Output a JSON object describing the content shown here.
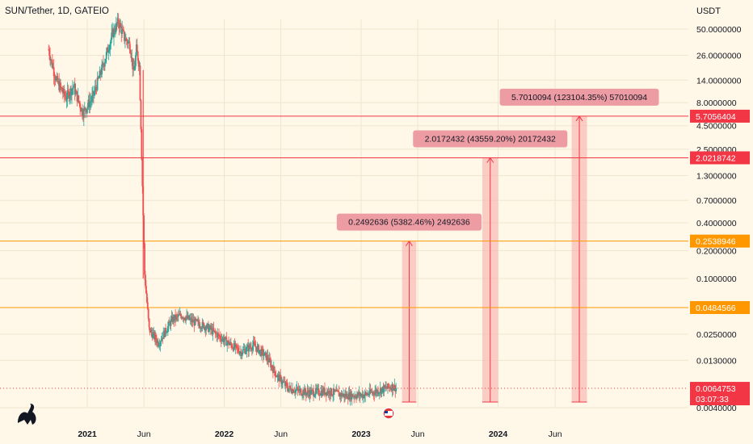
{
  "header": {
    "title": "SUN/Tether, 1D, GATEIO",
    "unit": "USDT"
  },
  "colors": {
    "background": "#fff7e7",
    "up": "#26a69a",
    "down": "#ef5350",
    "red_line": "#f23645",
    "orange_line": "#ff9800",
    "projection_fill": "#f7a9a8",
    "projection_label_bg": "#ee9ca4"
  },
  "chart_data": {
    "type": "candlestick",
    "y_scale": "log",
    "ylim": [
      0.0035,
      70
    ],
    "y_ticks": [
      "50.0000000",
      "26.0000000",
      "14.0000000",
      "8.0000000",
      "4.5000000",
      "2.5000000",
      "1.3000000",
      "0.7000000",
      "0.4000000",
      "0.2000000",
      "0.1000000",
      "0.0250000",
      "0.0130000",
      "0.0040000"
    ],
    "x_ticks": [
      {
        "label": "2021",
        "date": "2021-01-01",
        "bold": true
      },
      {
        "label": "Jun",
        "date": "2021-06-01",
        "bold": false
      },
      {
        "label": "2022",
        "date": "2022-01-01",
        "bold": true
      },
      {
        "label": "Jun",
        "date": "2022-06-01",
        "bold": false
      },
      {
        "label": "2023",
        "date": "2023-01-01",
        "bold": true
      },
      {
        "label": "Jun",
        "date": "2023-06-01",
        "bold": false
      },
      {
        "label": "2024",
        "date": "2024-01-01",
        "bold": true
      },
      {
        "label": "Jun",
        "date": "2024-06-01",
        "bold": false
      }
    ],
    "price_path": [
      [
        "2020-09-20",
        30
      ],
      [
        "2020-10-10",
        14
      ],
      [
        "2020-11-05",
        9
      ],
      [
        "2020-11-25",
        12
      ],
      [
        "2020-12-20",
        6.2
      ],
      [
        "2021-01-15",
        9
      ],
      [
        "2021-02-15",
        22
      ],
      [
        "2021-03-10",
        45
      ],
      [
        "2021-03-25",
        60
      ],
      [
        "2021-04-10",
        40
      ],
      [
        "2021-04-25",
        34
      ],
      [
        "2021-05-05",
        16
      ],
      [
        "2021-05-12",
        30
      ],
      [
        "2021-05-20",
        20
      ],
      [
        "2021-06-03",
        0.11
      ],
      [
        "2021-06-15",
        0.028
      ],
      [
        "2021-07-10",
        0.02
      ],
      [
        "2021-08-15",
        0.036
      ],
      [
        "2021-09-10",
        0.04
      ],
      [
        "2021-10-10",
        0.034
      ],
      [
        "2021-11-15",
        0.03
      ],
      [
        "2022-01-05",
        0.021
      ],
      [
        "2022-02-15",
        0.016
      ],
      [
        "2022-03-20",
        0.019
      ],
      [
        "2022-04-25",
        0.014
      ],
      [
        "2022-05-20",
        0.009
      ],
      [
        "2022-06-20",
        0.0065
      ],
      [
        "2022-08-10",
        0.0058
      ],
      [
        "2022-10-01",
        0.006
      ],
      [
        "2022-11-20",
        0.0054
      ],
      [
        "2023-01-10",
        0.0055
      ],
      [
        "2023-02-20",
        0.0062
      ],
      [
        "2023-03-25",
        0.0068
      ],
      [
        "2023-04-05",
        0.0065
      ]
    ],
    "horizontal_lines": [
      {
        "value": 5.7056404,
        "label": "5.7056404",
        "color": "red"
      },
      {
        "value": 2.0218742,
        "label": "2.0218742",
        "color": "red"
      },
      {
        "value": 0.2538946,
        "label": "0.2538946",
        "color": "orange"
      },
      {
        "value": 0.0484566,
        "label": "0.0484566",
        "color": "orange"
      }
    ],
    "current_price": {
      "value": 0.0064753,
      "label": "0.0064753",
      "countdown": "03:07:33"
    },
    "projections": [
      {
        "start": "2023-04-20",
        "end": "2023-05-28",
        "from": 0.0046,
        "to": 0.2538946,
        "label": "0.2492636 (5382.46%) 2492636"
      },
      {
        "start": "2023-11-20",
        "end": "2024-01-01",
        "from": 0.0046,
        "to": 2.0218742,
        "label": "2.0172432 (43559.20%) 20172432"
      },
      {
        "start": "2024-07-15",
        "end": "2024-08-25",
        "from": 0.0046,
        "to": 5.7056404,
        "label": "5.7010094 (123104.35%) 57010094"
      }
    ],
    "crash_line": {
      "date": "2021-05-30",
      "from": 18,
      "to": 0.1
    }
  }
}
